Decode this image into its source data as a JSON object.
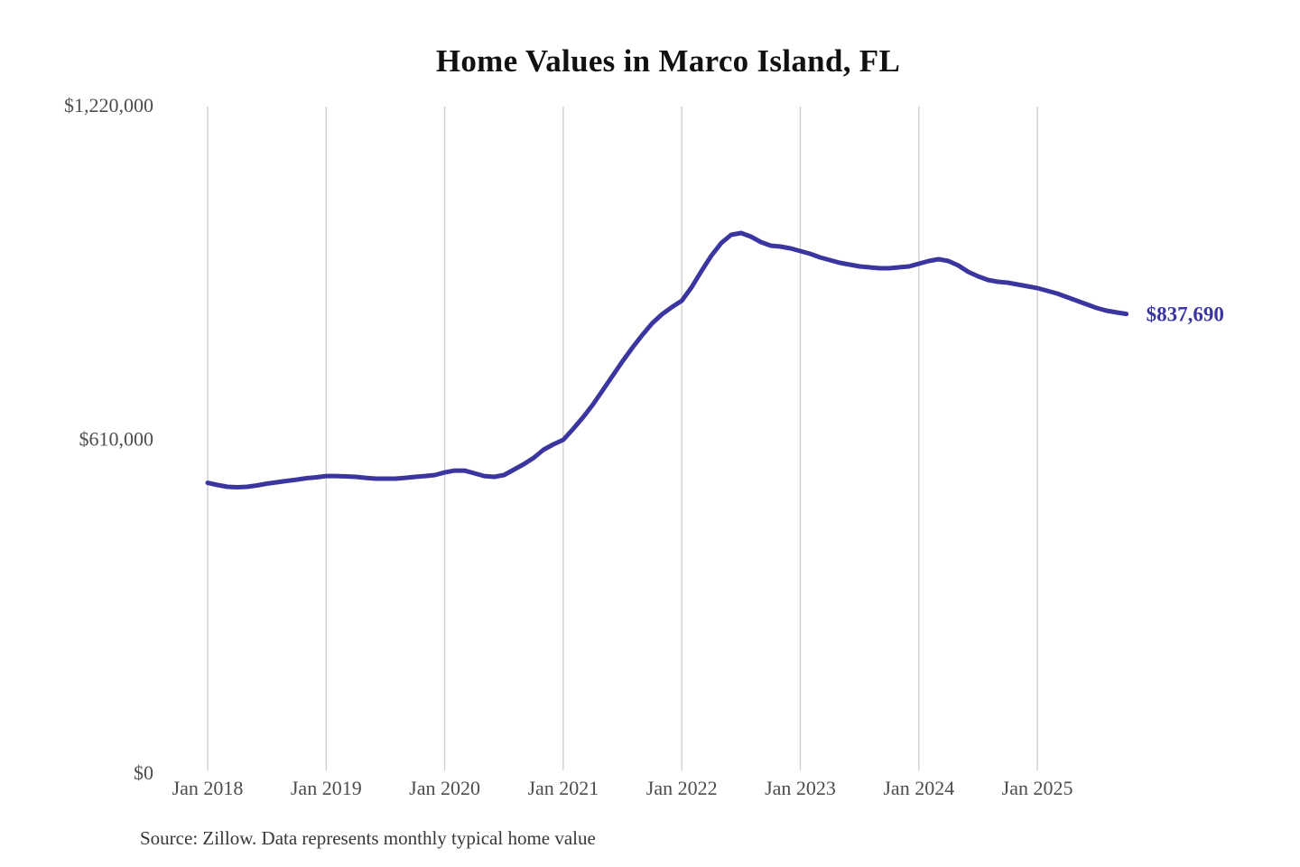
{
  "chart_data": {
    "type": "line",
    "title": "Home Values in Marco Island, FL",
    "source": "Source: Zillow. Data represents monthly typical home value",
    "xlabel": "",
    "ylabel": "",
    "ylim": [
      0,
      1220000
    ],
    "grid": "vertical-yearly",
    "legend": "none",
    "x_frequency": "monthly",
    "x_start": "2018-01",
    "x_end": "2025-10",
    "x_tick_labels": [
      "Jan 2018",
      "Jan 2019",
      "Jan 2020",
      "Jan 2021",
      "Jan 2022",
      "Jan 2023",
      "Jan 2024",
      "Jan 2025"
    ],
    "y_ticks": [
      {
        "value": 0,
        "label": "$0"
      },
      {
        "value": 610000,
        "label": "$610,000"
      },
      {
        "value": 1220000,
        "label": "$1,220,000"
      }
    ],
    "end_label": "$837,690",
    "final_value": 837690,
    "series": [
      {
        "name": "Monthly typical home value",
        "values": [
          529000,
          524900,
          521600,
          520800,
          521600,
          524100,
          527400,
          529900,
          532400,
          534800,
          537300,
          539000,
          541400,
          541400,
          540600,
          539800,
          538100,
          536500,
          536500,
          536500,
          538100,
          539800,
          541400,
          543100,
          548000,
          551300,
          551300,
          546400,
          541400,
          539800,
          543100,
          553000,
          562900,
          574500,
          589300,
          599200,
          607500,
          627300,
          648700,
          671900,
          698300,
          724700,
          751100,
          775900,
          799000,
          820500,
          837000,
          850200,
          861800,
          886500,
          916200,
          944300,
          967400,
          982200,
          985500,
          978900,
          969000,
          962400,
          960800,
          957500,
          952500,
          947600,
          941000,
          936000,
          931100,
          927800,
          924500,
          922800,
          921200,
          921200,
          922800,
          924500,
          929400,
          934400,
          937700,
          934400,
          926100,
          914600,
          906300,
          899700,
          896400,
          894800,
          891500,
          888200,
          884900,
          880000,
          875000,
          868400,
          861800,
          855200,
          848600,
          843600,
          840400,
          837690
        ]
      }
    ]
  },
  "colors": {
    "line": "#3b35a0",
    "end_label": "#3b35a0",
    "grid": "#cccccc",
    "axis_text": "#4d4d4d",
    "title_text": "#111111",
    "source_text": "#383838",
    "background": "#ffffff"
  }
}
